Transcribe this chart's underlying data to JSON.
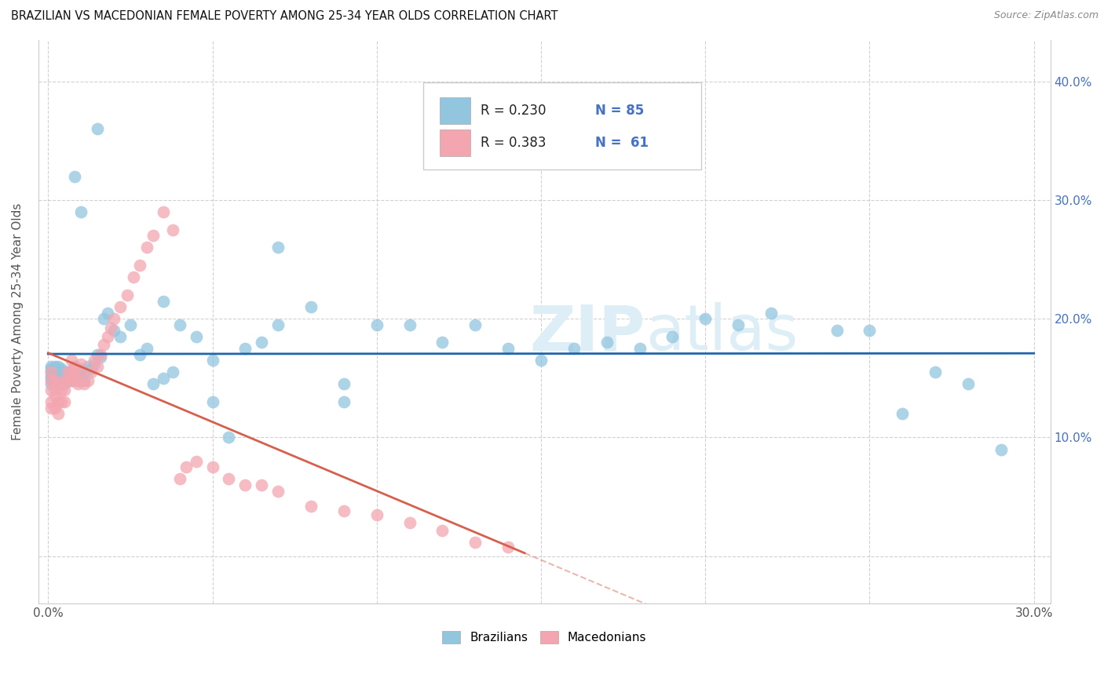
{
  "title": "BRAZILIAN VS MACEDONIAN FEMALE POVERTY AMONG 25-34 YEAR OLDS CORRELATION CHART",
  "source": "Source: ZipAtlas.com",
  "ylabel": "Female Poverty Among 25-34 Year Olds",
  "xlim": [
    -0.003,
    0.305
  ],
  "ylim": [
    -0.04,
    0.435
  ],
  "xticks": [
    0.0,
    0.05,
    0.1,
    0.15,
    0.2,
    0.25,
    0.3
  ],
  "yticks": [
    0.0,
    0.1,
    0.2,
    0.3,
    0.4
  ],
  "brazil_color": "#92c5de",
  "mace_color": "#f4a6b0",
  "brazil_line_color": "#2166ac",
  "mace_line_color": "#d6604d",
  "watermark_color": "#ddeef6",
  "legend_brazil_text": "R = 0.230   N = 85",
  "legend_mace_text": "R = 0.383   N =  61",
  "brazil_x": [
    0.001,
    0.001,
    0.001,
    0.001,
    0.001,
    0.001,
    0.002,
    0.002,
    0.002,
    0.002,
    0.002,
    0.003,
    0.003,
    0.003,
    0.003,
    0.004,
    0.004,
    0.004,
    0.005,
    0.005,
    0.005,
    0.006,
    0.006,
    0.006,
    0.007,
    0.007,
    0.007,
    0.008,
    0.008,
    0.009,
    0.009,
    0.01,
    0.01,
    0.011,
    0.011,
    0.012,
    0.013,
    0.014,
    0.015,
    0.016,
    0.017,
    0.018,
    0.02,
    0.022,
    0.025,
    0.028,
    0.03,
    0.032,
    0.035,
    0.038,
    0.04,
    0.045,
    0.05,
    0.055,
    0.06,
    0.065,
    0.07,
    0.08,
    0.09,
    0.1,
    0.11,
    0.12,
    0.13,
    0.14,
    0.15,
    0.16,
    0.17,
    0.18,
    0.19,
    0.2,
    0.21,
    0.22,
    0.24,
    0.25,
    0.26,
    0.27,
    0.28,
    0.29,
    0.008,
    0.01,
    0.015,
    0.035,
    0.05,
    0.07,
    0.09
  ],
  "brazil_y": [
    0.155,
    0.16,
    0.15,
    0.145,
    0.158,
    0.152,
    0.155,
    0.148,
    0.16,
    0.152,
    0.145,
    0.15,
    0.148,
    0.155,
    0.16,
    0.145,
    0.152,
    0.158,
    0.15,
    0.155,
    0.145,
    0.148,
    0.155,
    0.15,
    0.148,
    0.155,
    0.152,
    0.155,
    0.16,
    0.148,
    0.155,
    0.152,
    0.158,
    0.155,
    0.148,
    0.16,
    0.158,
    0.162,
    0.17,
    0.168,
    0.2,
    0.205,
    0.19,
    0.185,
    0.195,
    0.17,
    0.175,
    0.145,
    0.15,
    0.155,
    0.195,
    0.185,
    0.165,
    0.1,
    0.175,
    0.18,
    0.195,
    0.21,
    0.13,
    0.195,
    0.195,
    0.18,
    0.195,
    0.175,
    0.165,
    0.175,
    0.18,
    0.175,
    0.185,
    0.2,
    0.195,
    0.205,
    0.19,
    0.19,
    0.12,
    0.155,
    0.145,
    0.09,
    0.32,
    0.29,
    0.36,
    0.215,
    0.13,
    0.26,
    0.145
  ],
  "mace_x": [
    0.001,
    0.001,
    0.001,
    0.001,
    0.001,
    0.002,
    0.002,
    0.002,
    0.002,
    0.003,
    0.003,
    0.003,
    0.004,
    0.004,
    0.005,
    0.005,
    0.005,
    0.006,
    0.006,
    0.007,
    0.007,
    0.007,
    0.008,
    0.008,
    0.009,
    0.009,
    0.01,
    0.01,
    0.011,
    0.012,
    0.013,
    0.014,
    0.015,
    0.016,
    0.017,
    0.018,
    0.019,
    0.02,
    0.022,
    0.024,
    0.026,
    0.028,
    0.03,
    0.032,
    0.035,
    0.038,
    0.04,
    0.042,
    0.045,
    0.05,
    0.055,
    0.06,
    0.065,
    0.07,
    0.08,
    0.09,
    0.1,
    0.11,
    0.12,
    0.13,
    0.14
  ],
  "mace_y": [
    0.155,
    0.148,
    0.14,
    0.13,
    0.125,
    0.148,
    0.14,
    0.135,
    0.125,
    0.145,
    0.13,
    0.12,
    0.14,
    0.13,
    0.148,
    0.14,
    0.13,
    0.155,
    0.148,
    0.165,
    0.155,
    0.148,
    0.16,
    0.155,
    0.145,
    0.148,
    0.162,
    0.155,
    0.145,
    0.148,
    0.155,
    0.165,
    0.16,
    0.17,
    0.178,
    0.185,
    0.192,
    0.2,
    0.21,
    0.22,
    0.235,
    0.245,
    0.26,
    0.27,
    0.29,
    0.275,
    0.065,
    0.075,
    0.08,
    0.075,
    0.065,
    0.06,
    0.06,
    0.055,
    0.042,
    0.038,
    0.035,
    0.028,
    0.022,
    0.012,
    0.008
  ],
  "figsize": [
    14.06,
    8.92
  ],
  "dpi": 100
}
